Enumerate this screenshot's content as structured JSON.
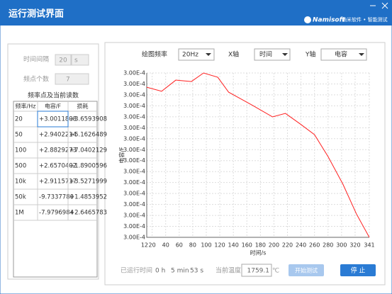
{
  "header": {
    "title": "运行测试界面",
    "logo": "Namisoft",
    "tagline": "纳米软件 • 智能测试"
  },
  "settings": {
    "interval_label": "时间间隔",
    "interval_value": "20",
    "interval_unit": "s",
    "points_label": "频点个数",
    "points_value": "7"
  },
  "table": {
    "title": "频率点及当前读数",
    "columns": [
      "频率/Hz",
      "电容/F",
      "损耗"
    ],
    "rows": [
      [
        "20",
        "+3.0011808",
        "+3.6593908"
      ],
      [
        "50",
        "+2.9402214",
        "+5.1626489"
      ],
      [
        "100",
        "+2.8829273",
        "+7.0402129"
      ],
      [
        "500",
        "+2.6570402",
        "+1.8900596"
      ],
      [
        "10k",
        "+2.9115717",
        "+3.5271999"
      ],
      [
        "50k",
        "-9.7337780",
        "+1.4853952"
      ],
      [
        "1M",
        "-7.9796984",
        "+2.6465783"
      ]
    ]
  },
  "controls": {
    "plot_freq_label": "绘图频率",
    "plot_freq": "20Hz",
    "x_label": "X轴",
    "x_value": "时间",
    "y_label": "Y轴",
    "y_value": "电容"
  },
  "chart_data": {
    "type": "line",
    "xlabel": "时间/s",
    "ylabel": "电容/F",
    "x": [
      12,
      34,
      55,
      78,
      96,
      117,
      133,
      152,
      169,
      198,
      217,
      239,
      260,
      280,
      302,
      322,
      341
    ],
    "series": [
      {
        "color": "#ff2020",
        "values": [
          0.000300057,
          0.0003000533,
          0.0003000635,
          0.0003000622,
          0.00030007,
          0.0003000661,
          0.0003000525,
          0.000300046,
          0.0003000402,
          0.0003000299,
          0.0003000331,
          0.0003000234,
          0.0003000137,
          0.0002999937,
          0.0002999685,
          0.0002999413,
          0.00029992
        ]
      }
    ],
    "xlim": [
      12,
      341
    ],
    "xticks": [
      12,
      20,
      40,
      60,
      80,
      100,
      120,
      140,
      160,
      180,
      200,
      220,
      240,
      260,
      280,
      300,
      320,
      341
    ],
    "ylim": [
      0.00029992,
      0.00030007
    ],
    "yticks": [
      {
        "value": 0.00029992,
        "label": "3.00E-4"
      },
      {
        "value": 0.00029993,
        "label": "3.00E-4"
      },
      {
        "value": 0.00029994,
        "label": "3.00E-4"
      },
      {
        "value": 0.00029995,
        "label": "3.00E-4"
      },
      {
        "value": 0.00029996,
        "label": "3.00E-4"
      },
      {
        "value": 0.00029997,
        "label": "3.00E-4"
      },
      {
        "value": 0.00029998,
        "label": "3.00E-4"
      },
      {
        "value": 0.00029999,
        "label": "3.00E-4"
      },
      {
        "value": 0.0003,
        "label": "3.00E-4"
      },
      {
        "value": 0.00030001,
        "label": "3.00E-4"
      },
      {
        "value": 0.00030002,
        "label": "3.00E-4"
      },
      {
        "value": 0.00030003,
        "label": "3.00E-4"
      },
      {
        "value": 0.00030004,
        "label": "3.00E-4"
      },
      {
        "value": 0.00030005,
        "label": "3.00E-4"
      },
      {
        "value": 0.00030006,
        "label": "3.00E-4"
      },
      {
        "value": 0.00030007,
        "label": "3.00E-4"
      }
    ],
    "grid": true
  },
  "status": {
    "elapsed_label": "已运行时间",
    "hours": "0 h",
    "minutes": "5 min",
    "seconds": "53 s",
    "temp_label": "当前温度",
    "temp_value": "1759.1",
    "temp_unit": "℃",
    "start_button": "开始测试",
    "stop_button": "停 止"
  }
}
